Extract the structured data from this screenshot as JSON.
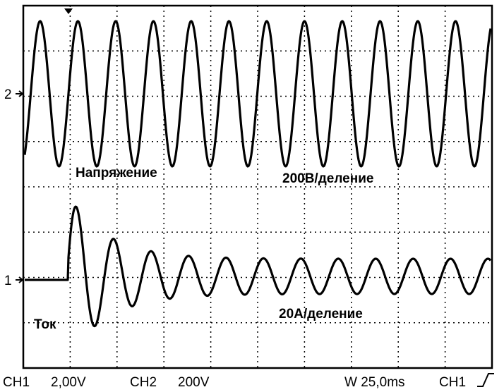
{
  "screen": {
    "labels": {
      "voltage": "Напряжение",
      "voltage_scale": "200В/деление",
      "current": "Ток",
      "current_scale": "20А/деление"
    },
    "markers": {
      "ch2": "2",
      "ch1": "1"
    }
  },
  "status_bar": {
    "ch1_label": "CH1",
    "ch1_scale": "2,00V",
    "ch2_label": "CH2",
    "ch2_scale": "200V",
    "timebase": "W 25,0ms",
    "trigger_source": "CH1"
  }
}
